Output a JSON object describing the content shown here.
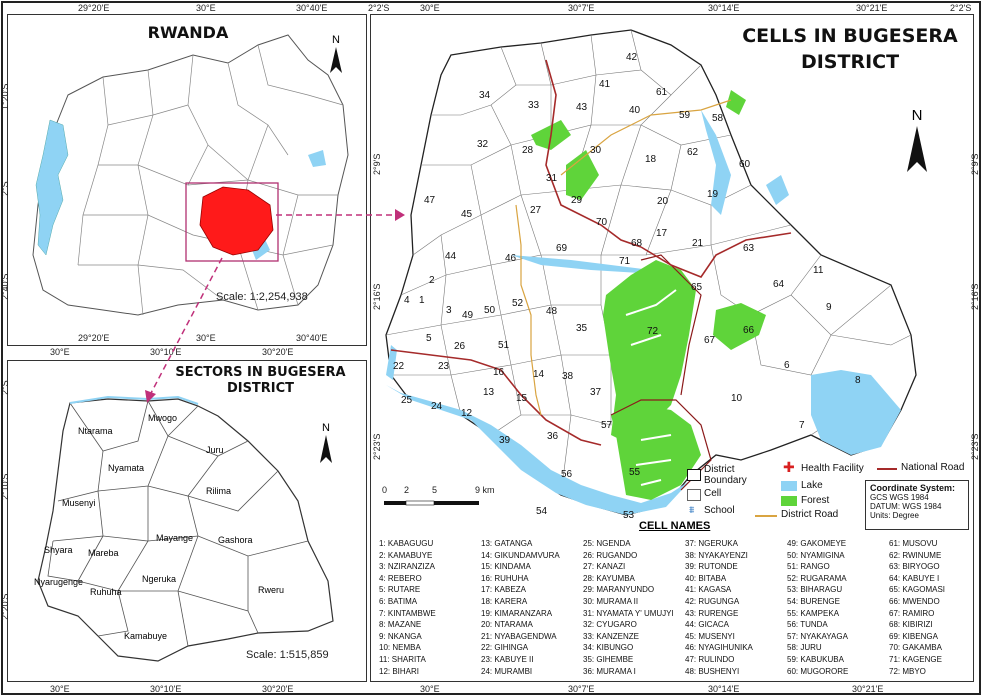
{
  "rwanda_map": {
    "title": "RWANDA",
    "scale": "Scale: 1:2,254,938",
    "top_ticks": [
      "29°20'E",
      "30°E",
      "30°40'E"
    ],
    "bottom_ticks": [
      "29°20'E",
      "30°E",
      "30°10'E",
      "30°20'E",
      "30°40'E"
    ],
    "left_ticks": [
      "1°20'S",
      "2°S",
      "2°40'S"
    ]
  },
  "sectors_map": {
    "title_line1": "SECTORS IN BUGESERA",
    "title_line2": "DISTRICT",
    "scale": "Scale: 1:515,859",
    "bottom_ticks": [
      "30°E",
      "30°10'E",
      "30°20'E"
    ],
    "left_ticks": [
      "2°S",
      "2°10'S",
      "2°20'S"
    ],
    "sectors": [
      "Ntarama",
      "Mwogo",
      "Juru",
      "Nyamata",
      "Musenyi",
      "Rilima",
      "Shyara",
      "Mareba",
      "Mayange",
      "Gashora",
      "Nyarugenge",
      "Ruhuha",
      "Ngeruka",
      "Rweru",
      "Kamabuye"
    ]
  },
  "cells_map": {
    "title_line1": "CELLS IN BUGESERA",
    "title_line2": "DISTRICT",
    "top_ticks": [
      "2°2'S",
      "30°E",
      "30°7'E",
      "30°14'E",
      "30°21'E",
      "2°2'S"
    ],
    "bottom_ticks": [
      "30°E",
      "30°7'E",
      "30°14'E",
      "30°21'E"
    ],
    "left_ticks": [
      "2°9'S",
      "2°16'S",
      "2°23'S"
    ],
    "right_ticks": [
      "2°9'S",
      "2°16'S",
      "2°23'S"
    ],
    "scalebar": [
      "0",
      "2",
      "5",
      "9 km"
    ]
  },
  "legend": {
    "district_boundary": "District Boundary",
    "cell": "Cell",
    "school": "School",
    "health_facility": "Health Facility",
    "lake": "Lake",
    "forest": "Forest",
    "district_road": "District Road",
    "national_road": "National Road",
    "colors": {
      "lake": "#8fd3f4",
      "forest": "#5fd43a",
      "health": "#d82020",
      "national_road": "#a52a2a",
      "district_road": "#d9a441",
      "school": "#3a7fc4",
      "highlight": "#ff1a1a"
    }
  },
  "coordinate_system": {
    "title": "Coordinate System:",
    "line1": "GCS WGS 1984",
    "line2": "DATUM: WGS 1984",
    "line3": "Units: Degree"
  },
  "north_label": "N",
  "cell_names_title": "CELL NAMES",
  "cell_names": [
    "1: KABAGUGU",
    "2: KAMABUYE",
    "3: NZIRANZIZA",
    "4: REBERO",
    "5: RUTARE",
    "6: BATIMA",
    "7: KINTAMBWE",
    "8: MAZANE",
    "9: NKANGA",
    "10: NEMBA",
    "11: SHARITA",
    "12: BIHARI",
    "13: GATANGA",
    "14: GIKUNDAMVURA",
    "15: KINDAMA",
    "16: RUHUHA",
    "17: KABEZA",
    "18: KARERA",
    "19: KIMARANZARA",
    "20: NTARAMA",
    "21: NYABAGENDWA",
    "22: GIHINGA",
    "23: KABUYE II",
    "24: MURAMBI",
    "25: NGENDA",
    "26: RUGANDO",
    "27: KANAZI",
    "28: KAYUMBA",
    "29: MARANYUNDO",
    "30: MURAMA II",
    "31: NYAMATA Y' UMUJYI",
    "32: CYUGARO",
    "33: KANZENZE",
    "34: KIBUNGO",
    "35: GIHEMBE",
    "36: MURAMA I",
    "37: NGERUKA",
    "38: NYAKAYENZI",
    "39: RUTONDE",
    "40: BITABA",
    "41: KAGASA",
    "42: RUGUNGA",
    "43: RURENGE",
    "44: GICACA",
    "45: MUSENYI",
    "46: NYAGIHUNIKA",
    "47: RULINDO",
    "48: BUSHENYI",
    "49: GAKOMEYE",
    "50: NYAMIGINA",
    "51: RANGO",
    "52: RUGARAMA",
    "53: BIHARAGU",
    "54: BURENGE",
    "55: KAMPEKA",
    "56: TUNDA",
    "57: NYAKAYAGA",
    "58: JURU",
    "59: KABUKUBA",
    "60: MUGORORE",
    "61: MUSOVU",
    "62: RWINUME",
    "63: BIRYOGO",
    "64: KABUYE I",
    "65: KAGOMASI",
    "66: MWENDO",
    "67: RAMIRO",
    "68: KIBIRIZI",
    "69: KIBENGA",
    "70: GAKAMBA",
    "71: KAGENGE",
    "72: MBYO"
  ],
  "cell_numbers": [
    "1",
    "2",
    "3",
    "4",
    "5",
    "6",
    "7",
    "8",
    "9",
    "10",
    "11",
    "12",
    "13",
    "14",
    "15",
    "16",
    "17",
    "18",
    "19",
    "20",
    "21",
    "22",
    "23",
    "24",
    "25",
    "26",
    "27",
    "28",
    "29",
    "30",
    "31",
    "32",
    "33",
    "34",
    "35",
    "36",
    "37",
    "38",
    "39",
    "40",
    "41",
    "42",
    "43",
    "44",
    "45",
    "46",
    "47",
    "48",
    "49",
    "50",
    "51",
    "52",
    "53",
    "54",
    "55",
    "56",
    "57",
    "58",
    "59",
    "60",
    "61",
    "62",
    "63",
    "64",
    "65",
    "66",
    "67",
    "68",
    "69",
    "70",
    "71",
    "72"
  ]
}
